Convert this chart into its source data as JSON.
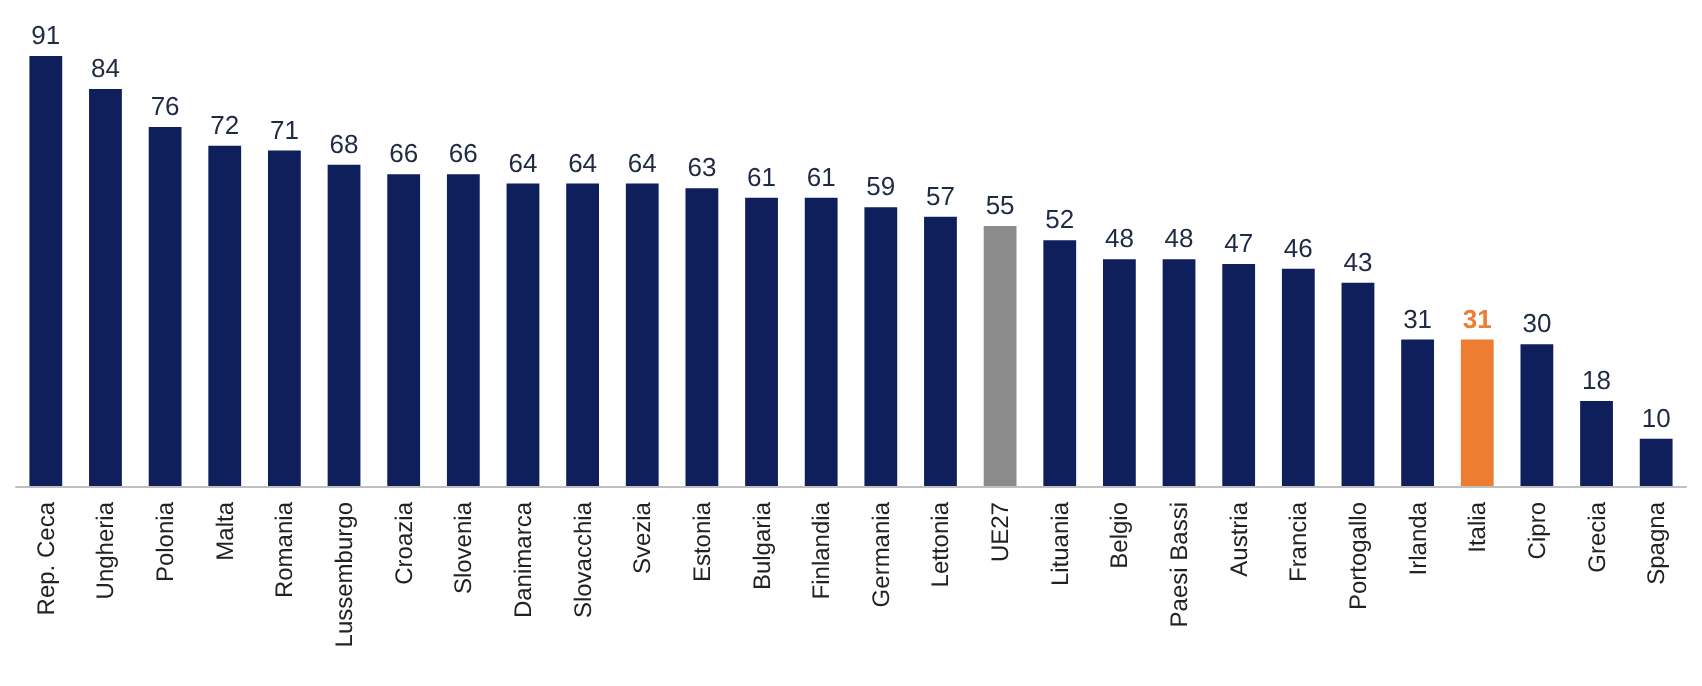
{
  "chart_data": {
    "type": "bar",
    "categories": [
      "Rep. Ceca",
      "Ungheria",
      "Polonia",
      "Malta",
      "Romania",
      "Lussemburgo",
      "Croazia",
      "Slovenia",
      "Danimarca",
      "Slovacchia",
      "Svezia",
      "Estonia",
      "Bulgaria",
      "Finlandia",
      "Germania",
      "Lettonia",
      "UE27",
      "Lituania",
      "Belgio",
      "Paesi Bassi",
      "Austria",
      "Francia",
      "Portogallo",
      "Irlanda",
      "Italia",
      "Cipro",
      "Grecia",
      "Spagna"
    ],
    "values": [
      91,
      84,
      76,
      72,
      71,
      68,
      66,
      66,
      64,
      64,
      64,
      63,
      61,
      61,
      59,
      57,
      55,
      52,
      48,
      48,
      47,
      46,
      43,
      31,
      31,
      30,
      18,
      10
    ],
    "colors": [
      "#0f1f5c",
      "#0f1f5c",
      "#0f1f5c",
      "#0f1f5c",
      "#0f1f5c",
      "#0f1f5c",
      "#0f1f5c",
      "#0f1f5c",
      "#0f1f5c",
      "#0f1f5c",
      "#0f1f5c",
      "#0f1f5c",
      "#0f1f5c",
      "#0f1f5c",
      "#0f1f5c",
      "#0f1f5c",
      "#8c8c8c",
      "#0f1f5c",
      "#0f1f5c",
      "#0f1f5c",
      "#0f1f5c",
      "#0f1f5c",
      "#0f1f5c",
      "#0f1f5c",
      "#ed7d31",
      "#0f1f5c",
      "#0f1f5c",
      "#0f1f5c"
    ],
    "data_labels": true
  }
}
